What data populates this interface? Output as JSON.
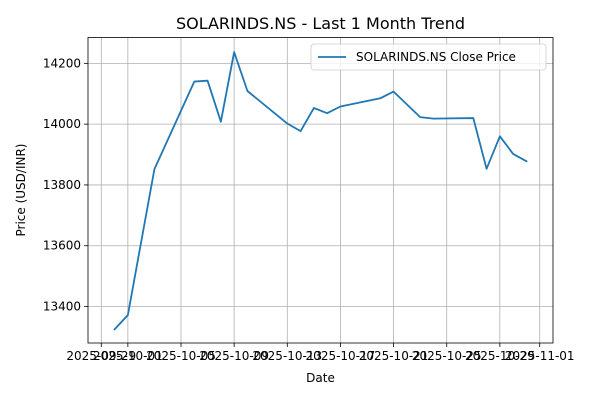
{
  "chart_data": {
    "type": "line",
    "title": "SOLARINDS.NS - Last 1 Month Trend",
    "xlabel": "Date",
    "ylabel": "Price (USD/INR)",
    "grid": true,
    "legend_position": "top-right",
    "x_range": [
      "2025-09-28",
      "2025-11-02"
    ],
    "ylim": [
      13280,
      14285
    ],
    "x_ticks": [
      "2025-09-29",
      "2025-10-01",
      "2025-10-05",
      "2025-10-09",
      "2025-10-13",
      "2025-10-17",
      "2025-10-21",
      "2025-10-25",
      "2025-10-29",
      "2025-11-01"
    ],
    "x_tick_labels": [
      "2025-09-29",
      "2025-10-01",
      "2025-10-05",
      "2025-10-09",
      "2025-10-13",
      "2025-10-17",
      "2025-10-21",
      "2025-10-25",
      "2025-10-29",
      "2025-11-01"
    ],
    "y_ticks": [
      13400,
      13600,
      13800,
      14000,
      14200
    ],
    "y_tick_labels": [
      "13400",
      "13600",
      "13800",
      "14000",
      "14200"
    ],
    "series": [
      {
        "name": "SOLARINDS.NS Close Price",
        "color": "#1f77b4",
        "x": [
          "2025-09-30",
          "2025-10-01",
          "2025-10-03",
          "2025-10-06",
          "2025-10-07",
          "2025-10-08",
          "2025-10-09",
          "2025-10-10",
          "2025-10-13",
          "2025-10-14",
          "2025-10-15",
          "2025-10-16",
          "2025-10-17",
          "2025-10-20",
          "2025-10-21",
          "2025-10-23",
          "2025-10-24",
          "2025-10-27",
          "2025-10-28",
          "2025-10-29",
          "2025-10-30",
          "2025-10-31"
        ],
        "values": [
          13325,
          13372,
          13852,
          14140,
          14143,
          14008,
          14237,
          14109,
          14002,
          13977,
          14053,
          14036,
          14058,
          14085,
          14107,
          14023,
          14018,
          14020,
          13853,
          13960,
          13902,
          13878
        ]
      }
    ]
  }
}
